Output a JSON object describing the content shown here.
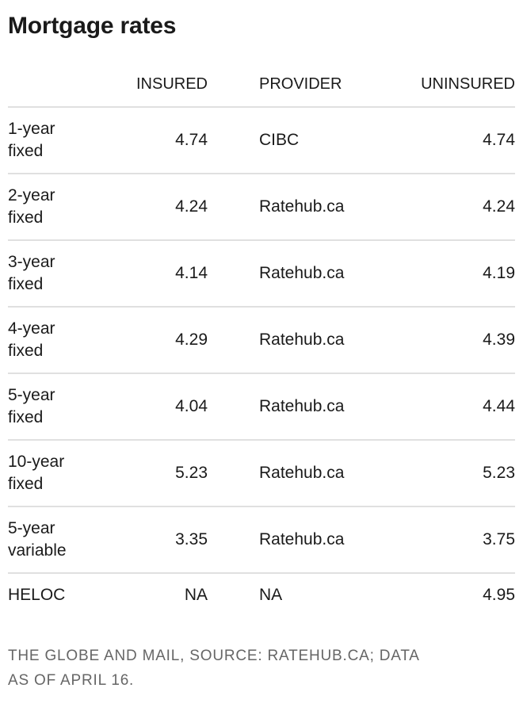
{
  "title": "Mortgage rates",
  "table": {
    "headers": {
      "insured": "INSURED",
      "provider": "PROVIDER",
      "uninsured": "UNINSURED"
    },
    "rows": [
      {
        "term": [
          "1-year",
          "fixed"
        ],
        "insured": "4.74",
        "provider": "CIBC",
        "uninsured": "4.74"
      },
      {
        "term": [
          "2-year",
          "fixed"
        ],
        "insured": "4.24",
        "provider": "Ratehub.ca",
        "uninsured": "4.24"
      },
      {
        "term": [
          "3-year",
          "fixed"
        ],
        "insured": "4.14",
        "provider": "Ratehub.ca",
        "uninsured": "4.19"
      },
      {
        "term": [
          "4-year",
          "fixed"
        ],
        "insured": "4.29",
        "provider": "Ratehub.ca",
        "uninsured": "4.39"
      },
      {
        "term": [
          "5-year",
          "fixed"
        ],
        "insured": "4.04",
        "provider": "Ratehub.ca",
        "uninsured": "4.44"
      },
      {
        "term": [
          "10-year",
          "fixed"
        ],
        "insured": "5.23",
        "provider": "Ratehub.ca",
        "uninsured": "5.23"
      },
      {
        "term": [
          "5-year",
          "variable"
        ],
        "insured": "3.35",
        "provider": "Ratehub.ca",
        "uninsured": "3.75"
      },
      {
        "term": [
          "HELOC"
        ],
        "insured": "NA",
        "provider": "NA",
        "uninsured": "4.95"
      }
    ]
  },
  "footer": {
    "line1": "THE GLOBE AND MAIL, SOURCE: RATEHUB.CA; DATA",
    "line2": "AS OF APRIL 16."
  },
  "colors": {
    "text": "#1a1a1a",
    "muted": "#666666",
    "divider": "#e0e0e0"
  },
  "chart_data": {
    "type": "table",
    "title": "Mortgage rates",
    "columns": [
      "",
      "INSURED",
      "PROVIDER",
      "UNINSURED"
    ],
    "rows": [
      [
        "1-year fixed",
        4.74,
        "CIBC",
        4.74
      ],
      [
        "2-year fixed",
        4.24,
        "Ratehub.ca",
        4.24
      ],
      [
        "3-year fixed",
        4.14,
        "Ratehub.ca",
        4.19
      ],
      [
        "4-year fixed",
        4.29,
        "Ratehub.ca",
        4.39
      ],
      [
        "5-year fixed",
        4.04,
        "Ratehub.ca",
        4.44
      ],
      [
        "10-year fixed",
        5.23,
        "Ratehub.ca",
        5.23
      ],
      [
        "5-year variable",
        3.35,
        "Ratehub.ca",
        3.75
      ],
      [
        "HELOC",
        "NA",
        "NA",
        4.95
      ]
    ],
    "note": "THE GLOBE AND MAIL, SOURCE: RATEHUB.CA; DATA AS OF APRIL 16.",
    "layout": {
      "grid": "horizontal-rules-only",
      "value_alignment": "right",
      "header_case": "uppercase"
    }
  }
}
